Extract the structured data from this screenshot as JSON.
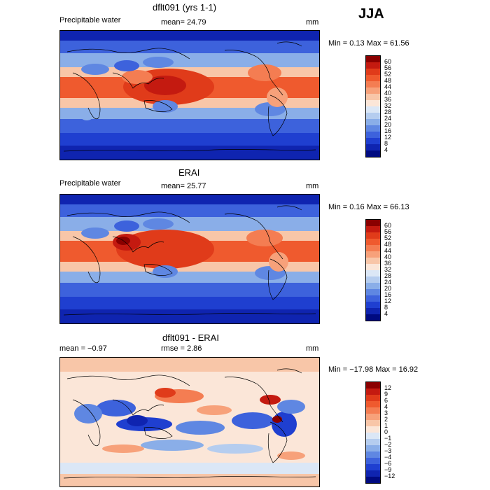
{
  "season": "JJA",
  "panels": [
    {
      "id": "model",
      "title": "dflt091 (yrs 1-1)",
      "field": "Precipitable water",
      "stat_text": "mean=  24.79",
      "units": "mm",
      "minmax_text": "Min =    0.13 Max =  61.56",
      "colorbar": {
        "labels": [
          "60",
          "56",
          "52",
          "48",
          "44",
          "40",
          "36",
          "32",
          "28",
          "24",
          "20",
          "16",
          "12",
          "8",
          "4"
        ],
        "colors": [
          "#8a0000",
          "#c41a10",
          "#e03b1a",
          "#ef5a2e",
          "#f47d52",
          "#f7a17a",
          "#f8c6a8",
          "#fbe6d8",
          "#dbe7f6",
          "#b5cdef",
          "#8aaee8",
          "#5f87e2",
          "#3d62dc",
          "#1f3fd0",
          "#0f24b0",
          "#000a80"
        ]
      }
    },
    {
      "id": "obs",
      "title": "ERAI",
      "field": "Precipitable water",
      "stat_text": "mean=  25.77",
      "units": "mm",
      "minmax_text": "Min =    0.16 Max =  66.13",
      "colorbar": {
        "labels": [
          "60",
          "56",
          "52",
          "48",
          "44",
          "40",
          "36",
          "32",
          "28",
          "24",
          "20",
          "16",
          "12",
          "8",
          "4"
        ],
        "colors": [
          "#8a0000",
          "#c41a10",
          "#e03b1a",
          "#ef5a2e",
          "#f47d52",
          "#f7a17a",
          "#f8c6a8",
          "#fbe6d8",
          "#dbe7f6",
          "#b5cdef",
          "#8aaee8",
          "#5f87e2",
          "#3d62dc",
          "#1f3fd0",
          "#0f24b0",
          "#000a80"
        ]
      }
    },
    {
      "id": "diff",
      "title": "dflt091 - ERAI",
      "stat_text": "mean =  −0.97",
      "rmse_text": "rmse =    2.86",
      "units": "mm",
      "minmax_text": "Min = −17.98 Max =  16.92",
      "colorbar": {
        "labels": [
          "12",
          "9",
          "6",
          "4",
          "3",
          "2",
          "1",
          "0",
          "−1",
          "−2",
          "−3",
          "−4",
          "−6",
          "−9",
          "−12"
        ],
        "colors": [
          "#8a0000",
          "#c41a10",
          "#e03b1a",
          "#ef5a2e",
          "#f47d52",
          "#f7a17a",
          "#f8c6a8",
          "#fbe6d8",
          "#dbe7f6",
          "#b5cdef",
          "#8aaee8",
          "#5f87e2",
          "#3d62dc",
          "#1f3fd0",
          "#0f24b0",
          "#000a80"
        ]
      }
    }
  ]
}
